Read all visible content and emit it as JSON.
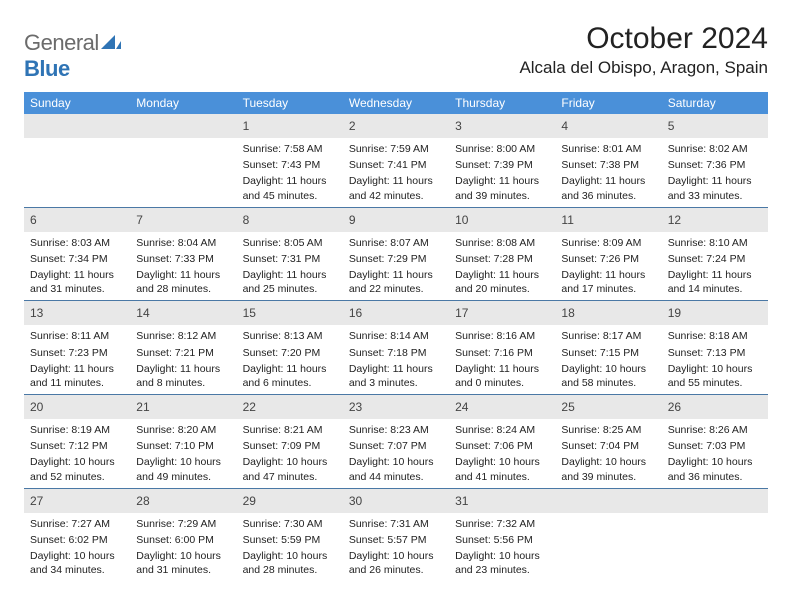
{
  "logo": {
    "part1": "General",
    "part2": "Blue"
  },
  "title": "October 2024",
  "location": "Alcala del Obispo, Aragon, Spain",
  "colors": {
    "header_bg": "#4a90d9",
    "header_text": "#ffffff",
    "daynum_bg": "#e8e8e8",
    "row_divider": "#4a78a5",
    "logo_gray": "#6b6b6b",
    "logo_blue": "#2f74b5"
  },
  "weekdays": [
    "Sunday",
    "Monday",
    "Tuesday",
    "Wednesday",
    "Thursday",
    "Friday",
    "Saturday"
  ],
  "weeks": [
    [
      {
        "empty": true
      },
      {
        "empty": true
      },
      {
        "day": "1",
        "sunrise": "Sunrise: 7:58 AM",
        "sunset": "Sunset: 7:43 PM",
        "daylight": "Daylight: 11 hours and 45 minutes."
      },
      {
        "day": "2",
        "sunrise": "Sunrise: 7:59 AM",
        "sunset": "Sunset: 7:41 PM",
        "daylight": "Daylight: 11 hours and 42 minutes."
      },
      {
        "day": "3",
        "sunrise": "Sunrise: 8:00 AM",
        "sunset": "Sunset: 7:39 PM",
        "daylight": "Daylight: 11 hours and 39 minutes."
      },
      {
        "day": "4",
        "sunrise": "Sunrise: 8:01 AM",
        "sunset": "Sunset: 7:38 PM",
        "daylight": "Daylight: 11 hours and 36 minutes."
      },
      {
        "day": "5",
        "sunrise": "Sunrise: 8:02 AM",
        "sunset": "Sunset: 7:36 PM",
        "daylight": "Daylight: 11 hours and 33 minutes."
      }
    ],
    [
      {
        "day": "6",
        "sunrise": "Sunrise: 8:03 AM",
        "sunset": "Sunset: 7:34 PM",
        "daylight": "Daylight: 11 hours and 31 minutes."
      },
      {
        "day": "7",
        "sunrise": "Sunrise: 8:04 AM",
        "sunset": "Sunset: 7:33 PM",
        "daylight": "Daylight: 11 hours and 28 minutes."
      },
      {
        "day": "8",
        "sunrise": "Sunrise: 8:05 AM",
        "sunset": "Sunset: 7:31 PM",
        "daylight": "Daylight: 11 hours and 25 minutes."
      },
      {
        "day": "9",
        "sunrise": "Sunrise: 8:07 AM",
        "sunset": "Sunset: 7:29 PM",
        "daylight": "Daylight: 11 hours and 22 minutes."
      },
      {
        "day": "10",
        "sunrise": "Sunrise: 8:08 AM",
        "sunset": "Sunset: 7:28 PM",
        "daylight": "Daylight: 11 hours and 20 minutes."
      },
      {
        "day": "11",
        "sunrise": "Sunrise: 8:09 AM",
        "sunset": "Sunset: 7:26 PM",
        "daylight": "Daylight: 11 hours and 17 minutes."
      },
      {
        "day": "12",
        "sunrise": "Sunrise: 8:10 AM",
        "sunset": "Sunset: 7:24 PM",
        "daylight": "Daylight: 11 hours and 14 minutes."
      }
    ],
    [
      {
        "day": "13",
        "sunrise": "Sunrise: 8:11 AM",
        "sunset": "Sunset: 7:23 PM",
        "daylight": "Daylight: 11 hours and 11 minutes."
      },
      {
        "day": "14",
        "sunrise": "Sunrise: 8:12 AM",
        "sunset": "Sunset: 7:21 PM",
        "daylight": "Daylight: 11 hours and 8 minutes."
      },
      {
        "day": "15",
        "sunrise": "Sunrise: 8:13 AM",
        "sunset": "Sunset: 7:20 PM",
        "daylight": "Daylight: 11 hours and 6 minutes."
      },
      {
        "day": "16",
        "sunrise": "Sunrise: 8:14 AM",
        "sunset": "Sunset: 7:18 PM",
        "daylight": "Daylight: 11 hours and 3 minutes."
      },
      {
        "day": "17",
        "sunrise": "Sunrise: 8:16 AM",
        "sunset": "Sunset: 7:16 PM",
        "daylight": "Daylight: 11 hours and 0 minutes."
      },
      {
        "day": "18",
        "sunrise": "Sunrise: 8:17 AM",
        "sunset": "Sunset: 7:15 PM",
        "daylight": "Daylight: 10 hours and 58 minutes."
      },
      {
        "day": "19",
        "sunrise": "Sunrise: 8:18 AM",
        "sunset": "Sunset: 7:13 PM",
        "daylight": "Daylight: 10 hours and 55 minutes."
      }
    ],
    [
      {
        "day": "20",
        "sunrise": "Sunrise: 8:19 AM",
        "sunset": "Sunset: 7:12 PM",
        "daylight": "Daylight: 10 hours and 52 minutes."
      },
      {
        "day": "21",
        "sunrise": "Sunrise: 8:20 AM",
        "sunset": "Sunset: 7:10 PM",
        "daylight": "Daylight: 10 hours and 49 minutes."
      },
      {
        "day": "22",
        "sunrise": "Sunrise: 8:21 AM",
        "sunset": "Sunset: 7:09 PM",
        "daylight": "Daylight: 10 hours and 47 minutes."
      },
      {
        "day": "23",
        "sunrise": "Sunrise: 8:23 AM",
        "sunset": "Sunset: 7:07 PM",
        "daylight": "Daylight: 10 hours and 44 minutes."
      },
      {
        "day": "24",
        "sunrise": "Sunrise: 8:24 AM",
        "sunset": "Sunset: 7:06 PM",
        "daylight": "Daylight: 10 hours and 41 minutes."
      },
      {
        "day": "25",
        "sunrise": "Sunrise: 8:25 AM",
        "sunset": "Sunset: 7:04 PM",
        "daylight": "Daylight: 10 hours and 39 minutes."
      },
      {
        "day": "26",
        "sunrise": "Sunrise: 8:26 AM",
        "sunset": "Sunset: 7:03 PM",
        "daylight": "Daylight: 10 hours and 36 minutes."
      }
    ],
    [
      {
        "day": "27",
        "sunrise": "Sunrise: 7:27 AM",
        "sunset": "Sunset: 6:02 PM",
        "daylight": "Daylight: 10 hours and 34 minutes."
      },
      {
        "day": "28",
        "sunrise": "Sunrise: 7:29 AM",
        "sunset": "Sunset: 6:00 PM",
        "daylight": "Daylight: 10 hours and 31 minutes."
      },
      {
        "day": "29",
        "sunrise": "Sunrise: 7:30 AM",
        "sunset": "Sunset: 5:59 PM",
        "daylight": "Daylight: 10 hours and 28 minutes."
      },
      {
        "day": "30",
        "sunrise": "Sunrise: 7:31 AM",
        "sunset": "Sunset: 5:57 PM",
        "daylight": "Daylight: 10 hours and 26 minutes."
      },
      {
        "day": "31",
        "sunrise": "Sunrise: 7:32 AM",
        "sunset": "Sunset: 5:56 PM",
        "daylight": "Daylight: 10 hours and 23 minutes."
      },
      {
        "empty": true
      },
      {
        "empty": true
      }
    ]
  ]
}
